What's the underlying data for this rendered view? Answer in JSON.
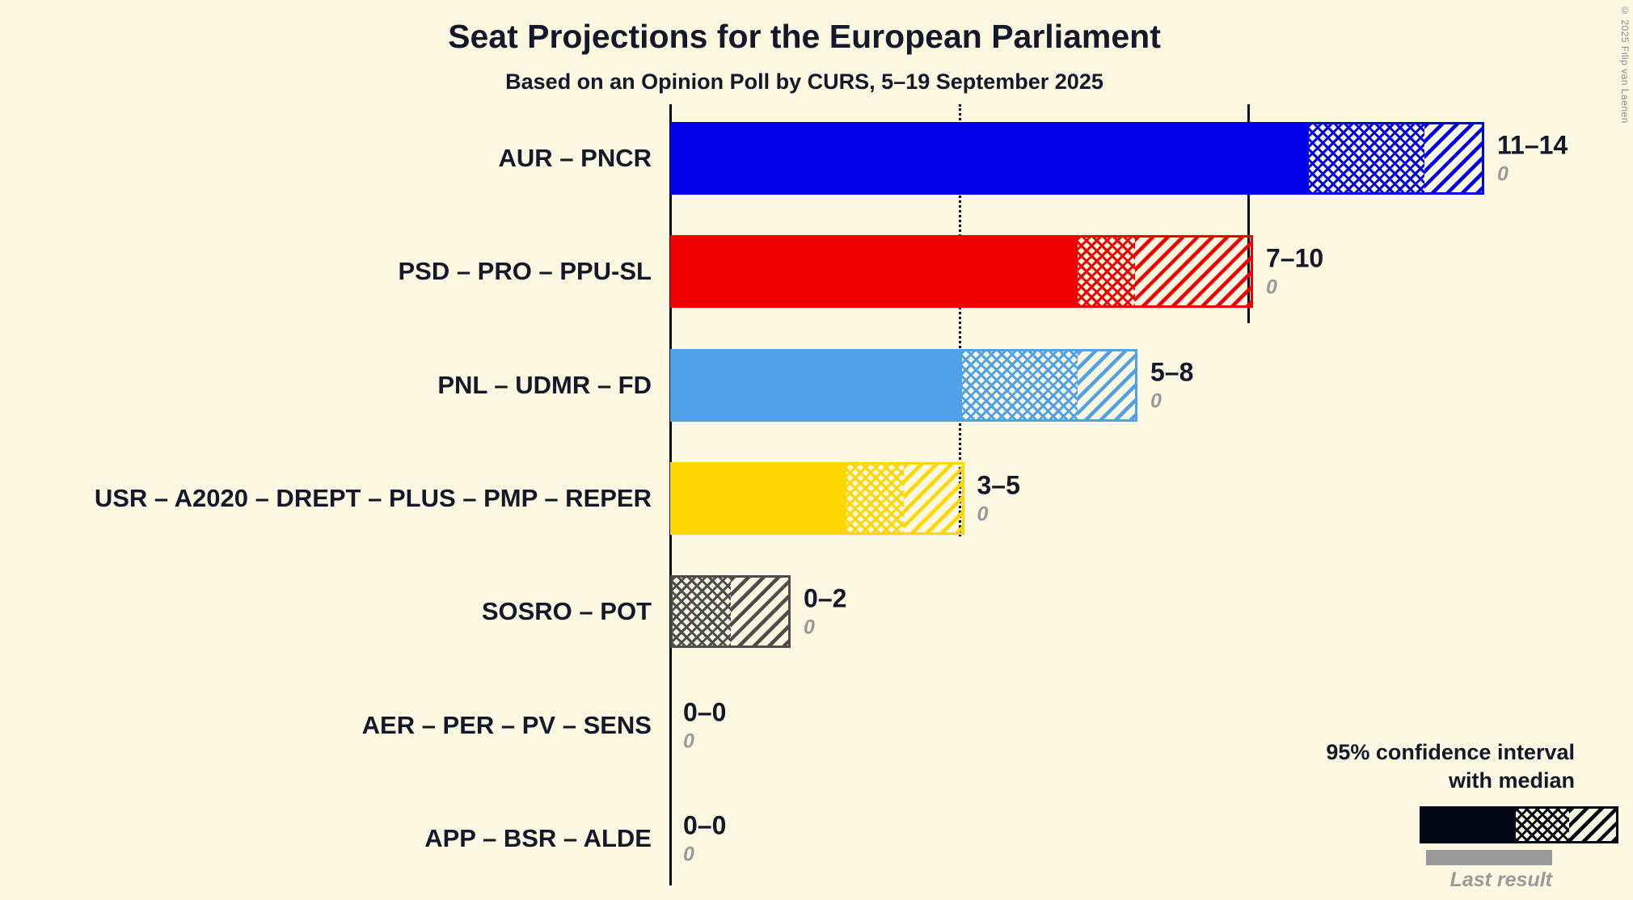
{
  "title": "Seat Projections for the European Parliament",
  "subtitle": "Based on an Opinion Poll by CURS, 5–19 September 2025",
  "copyright": "© 2025 Filip van Laenen",
  "legend": {
    "line1": "95% confidence interval",
    "line2": "with median",
    "last_result": "Last result"
  },
  "colors": {
    "background": "#FCF7E1",
    "text": "#13182B",
    "gray_text": "#9a9a9a",
    "legend_black": "#020816",
    "last_result_bar": "#999999"
  },
  "chart_data": {
    "type": "bar",
    "orientation": "horizontal",
    "unit": "seats",
    "x_axis": {
      "min": 0,
      "max": 16.5,
      "gridline_dotted_at": 5,
      "gridline_solid_at": 10
    },
    "bars": [
      {
        "label": "AUR – PNCR",
        "ci_low": 11,
        "median": 13,
        "ci_high": 14,
        "last_result": 0,
        "range_label": "11–14",
        "last_result_label": "0",
        "color": "#0000E6"
      },
      {
        "label": "PSD – PRO – PPU-SL",
        "ci_low": 7,
        "median": 8,
        "ci_high": 10,
        "last_result": 0,
        "range_label": "7–10",
        "last_result_label": "0",
        "color": "#F00000"
      },
      {
        "label": "PNL – UDMR – FD",
        "ci_low": 5,
        "median": 7,
        "ci_high": 8,
        "last_result": 0,
        "range_label": "5–8",
        "last_result_label": "0",
        "color": "#4FA1E8"
      },
      {
        "label": "USR – A2020 – DREPT – PLUS – PMP – REPER",
        "ci_low": 3,
        "median": 4,
        "ci_high": 5,
        "last_result": 0,
        "range_label": "3–5",
        "last_result_label": "0",
        "color": "#FFD700"
      },
      {
        "label": "SOSRO – POT",
        "ci_low": 0,
        "median": 1,
        "ci_high": 2,
        "last_result": 0,
        "range_label": "0–2",
        "last_result_label": "0",
        "color": "#4D4D4D"
      },
      {
        "label": "AER – PER – PV – SENS",
        "ci_low": 0,
        "median": 0,
        "ci_high": 0,
        "last_result": 0,
        "range_label": "0–0",
        "last_result_label": "0",
        "color": "#4D4D4D"
      },
      {
        "label": "APP – BSR – ALDE",
        "ci_low": 0,
        "median": 0,
        "ci_high": 0,
        "last_result": 0,
        "range_label": "0–0",
        "last_result_label": "0",
        "color": "#4D4D4D"
      }
    ]
  }
}
